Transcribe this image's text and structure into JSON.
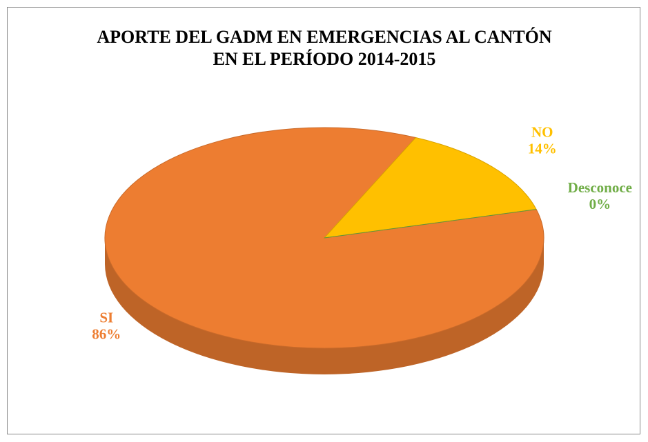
{
  "chart_data": {
    "type": "pie",
    "title": "APORTE DEL GADM EN EMERGENCIAS AL CANTÓN EN EL PERÍODO 2014-2015",
    "categories": [
      "SI",
      "NO",
      "Desconoce"
    ],
    "values": [
      86,
      14,
      0
    ],
    "value_labels": [
      "86%",
      "14%",
      "0%"
    ],
    "colors": [
      "#ED7D31",
      "#FFC000",
      "#70AD47"
    ]
  }
}
